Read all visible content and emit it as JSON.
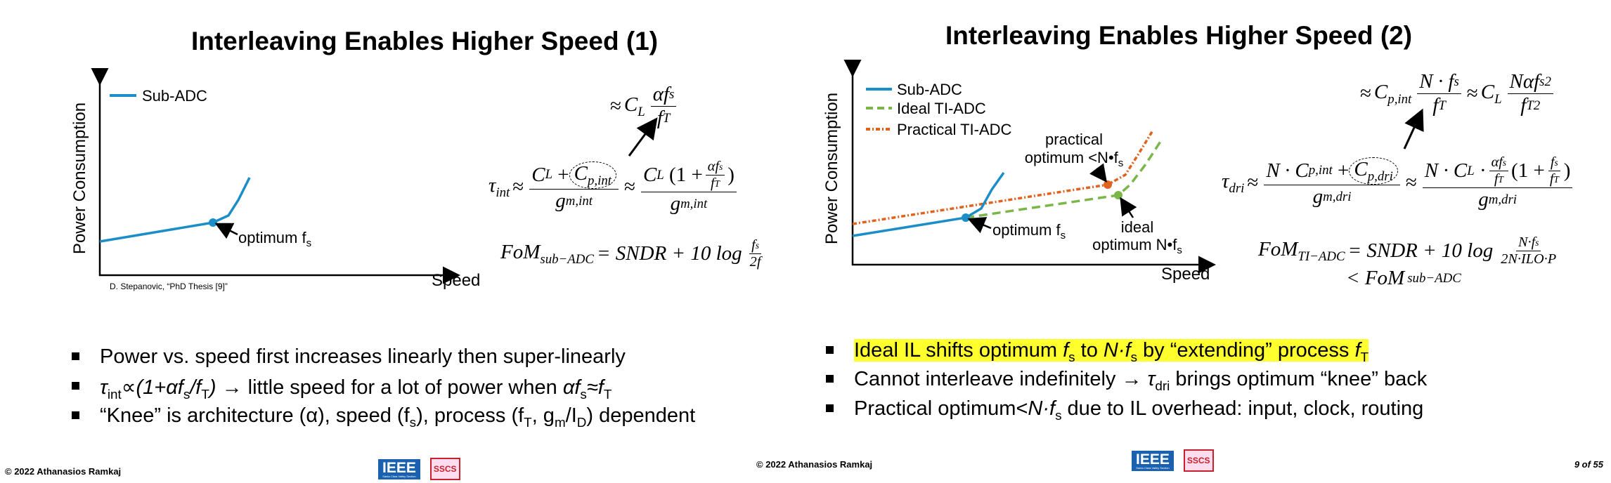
{
  "left_slide": {
    "title": "Interleaving Enables Higher Speed (1)",
    "chart": {
      "y_axis_label": "Power Consumption",
      "x_axis_label": "Speed",
      "legend": [
        "Sub-ADC"
      ],
      "annotation": [
        "optimum f",
        "s"
      ],
      "source": "D. Stepanovic, “PhD Thesis [9]”"
    },
    "equations": {
      "top": [
        "≈ ",
        "C",
        "L",
        "αf",
        "s",
        "f",
        "T"
      ],
      "tau_int": [
        "τ",
        "int",
        "≈",
        "C",
        "L",
        "+",
        "C",
        "p,int",
        "g",
        "m,int",
        "≈",
        "C",
        "L",
        "(1 + ",
        "αf",
        "s",
        "f",
        "T",
        ")",
        "g",
        "m,int"
      ],
      "fom": [
        "FoM",
        "sub−ADC",
        "= SNDR + 10 log",
        "f",
        "s",
        "2f"
      ]
    },
    "bullets": [
      [
        "Power vs. speed first increases linearly then super-linearly"
      ],
      [
        "τ",
        "int",
        "∝",
        "(1+αf",
        "s",
        "/f",
        "T",
        ")",
        " → little speed for a lot of power when ",
        "αf",
        "s",
        "≈f",
        "T"
      ],
      [
        "“Knee” is architecture (α), speed (f",
        "s",
        "), process (f",
        "T",
        ", g",
        "m",
        "/I",
        "D",
        ") dependent"
      ]
    ],
    "footer": {
      "copyright": "© 2022 Athanasios Ramkaj"
    },
    "logos": {
      "ieee": "IEEE",
      "section": "Santa Clara Valley Section",
      "sscs": "SSCS"
    }
  },
  "right_slide": {
    "title": "Interleaving Enables Higher Speed (2)",
    "chart": {
      "y_axis_label": "Power Consumption",
      "x_axis_label": "Speed",
      "legend": [
        "Sub-ADC",
        "Ideal TI-ADC",
        "Practical TI-ADC"
      ],
      "annotation_practical": [
        "practical",
        "optimum <N•f",
        "s"
      ],
      "annotation_sub": [
        "optimum f",
        "s"
      ],
      "annotation_ideal": [
        "ideal",
        "optimum N•f",
        "s"
      ]
    },
    "equations": {
      "top": [
        "≈ ",
        "C",
        "p,int",
        "N · f",
        "s",
        "f",
        "T",
        "≈ ",
        "C",
        "L",
        "Nαf",
        "s",
        "2",
        "f",
        "T",
        "2"
      ],
      "tau_dri": [
        "τ",
        "dri",
        "≈",
        "N · C",
        "p,int",
        "+",
        "C",
        "p,dri",
        "g",
        "m,dri",
        "≈",
        "N · C",
        "L",
        "·",
        "αf",
        "s",
        "f",
        "T",
        "(1 + ",
        "f",
        "s",
        "f",
        "T",
        ")",
        "g",
        "m,dri"
      ],
      "fom": [
        "FoM",
        "TI−ADC",
        "= SNDR + 10 log",
        "N·f",
        "s",
        "2N·ILO·P",
        "< FoM",
        "sub−ADC"
      ]
    },
    "bullets": [
      [
        "Ideal IL shifts optimum ",
        "f",
        "s",
        " to ",
        "N·f",
        "s",
        " by “extending” process ",
        "f",
        "T"
      ],
      [
        "Cannot interleave indefinitely → ",
        "τ",
        "dri",
        " brings optimum “knee” back"
      ],
      [
        "Practical optimum<",
        "N·f",
        "s",
        " due to IL overhead: input, clock, routing"
      ]
    ],
    "footer": {
      "copyright": "© 2022 Athanasios Ramkaj",
      "page": "9 of 55"
    },
    "logos": {
      "ieee": "IEEE",
      "section": "Santa Clara Valley Section",
      "sscs": "SSCS"
    }
  }
}
